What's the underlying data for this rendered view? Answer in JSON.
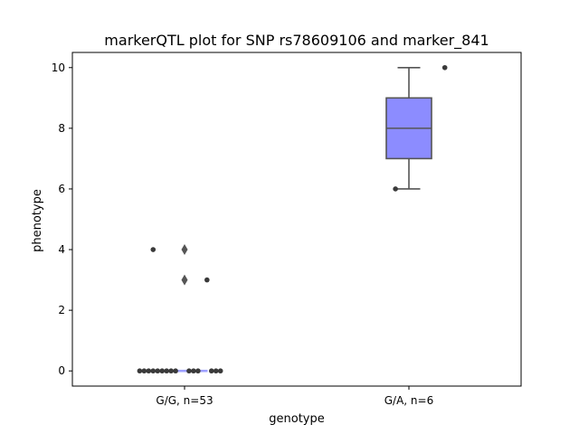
{
  "chart_data": {
    "type": "box",
    "title": "markerQTL plot for SNP rs78609106 and marker_841",
    "xlabel": "genotype",
    "ylabel": "phenotype",
    "ylim": [
      -0.5,
      10.5
    ],
    "yticks": [
      0,
      2,
      4,
      6,
      8,
      10
    ],
    "grid": false,
    "categories": [
      "G/G, n=53",
      "G/A, n=6"
    ],
    "boxes": [
      {
        "category": "G/G, n=53",
        "whisker_low": 0,
        "q1": 0,
        "median": 0,
        "q3": 0,
        "whisker_high": 0,
        "outliers": [
          3,
          4
        ],
        "box_color": "#9ea0ff"
      },
      {
        "category": "G/A, n=6",
        "whisker_low": 6,
        "q1": 7,
        "median": 8,
        "q3": 9,
        "whisker_high": 10,
        "outliers": [],
        "box_color": "#8c8cff"
      }
    ],
    "points": [
      {
        "category": "G/G, n=53",
        "x_offset": -0.14,
        "y": 4
      },
      {
        "category": "G/G, n=53",
        "x_offset": 0.1,
        "y": 3
      },
      {
        "category": "G/G, n=53",
        "x_offset": -0.2,
        "y": 0
      },
      {
        "category": "G/G, n=53",
        "x_offset": -0.18,
        "y": 0
      },
      {
        "category": "G/G, n=53",
        "x_offset": -0.16,
        "y": 0
      },
      {
        "category": "G/G, n=53",
        "x_offset": -0.14,
        "y": 0
      },
      {
        "category": "G/G, n=53",
        "x_offset": -0.12,
        "y": 0
      },
      {
        "category": "G/G, n=53",
        "x_offset": -0.1,
        "y": 0
      },
      {
        "category": "G/G, n=53",
        "x_offset": -0.08,
        "y": 0
      },
      {
        "category": "G/G, n=53",
        "x_offset": -0.06,
        "y": 0
      },
      {
        "category": "G/G, n=53",
        "x_offset": -0.04,
        "y": 0
      },
      {
        "category": "G/G, n=53",
        "x_offset": 0.02,
        "y": 0
      },
      {
        "category": "G/G, n=53",
        "x_offset": 0.04,
        "y": 0
      },
      {
        "category": "G/G, n=53",
        "x_offset": 0.06,
        "y": 0
      },
      {
        "category": "G/G, n=53",
        "x_offset": 0.12,
        "y": 0
      },
      {
        "category": "G/G, n=53",
        "x_offset": 0.14,
        "y": 0
      },
      {
        "category": "G/G, n=53",
        "x_offset": 0.16,
        "y": 0
      },
      {
        "category": "G/A, n=6",
        "x_offset": -0.06,
        "y": 6
      },
      {
        "category": "G/A, n=6",
        "x_offset": 0.16,
        "y": 10
      }
    ],
    "colors": {
      "point": "#3a3a3a",
      "whisker": "#555555",
      "outlier": "#555555"
    }
  }
}
